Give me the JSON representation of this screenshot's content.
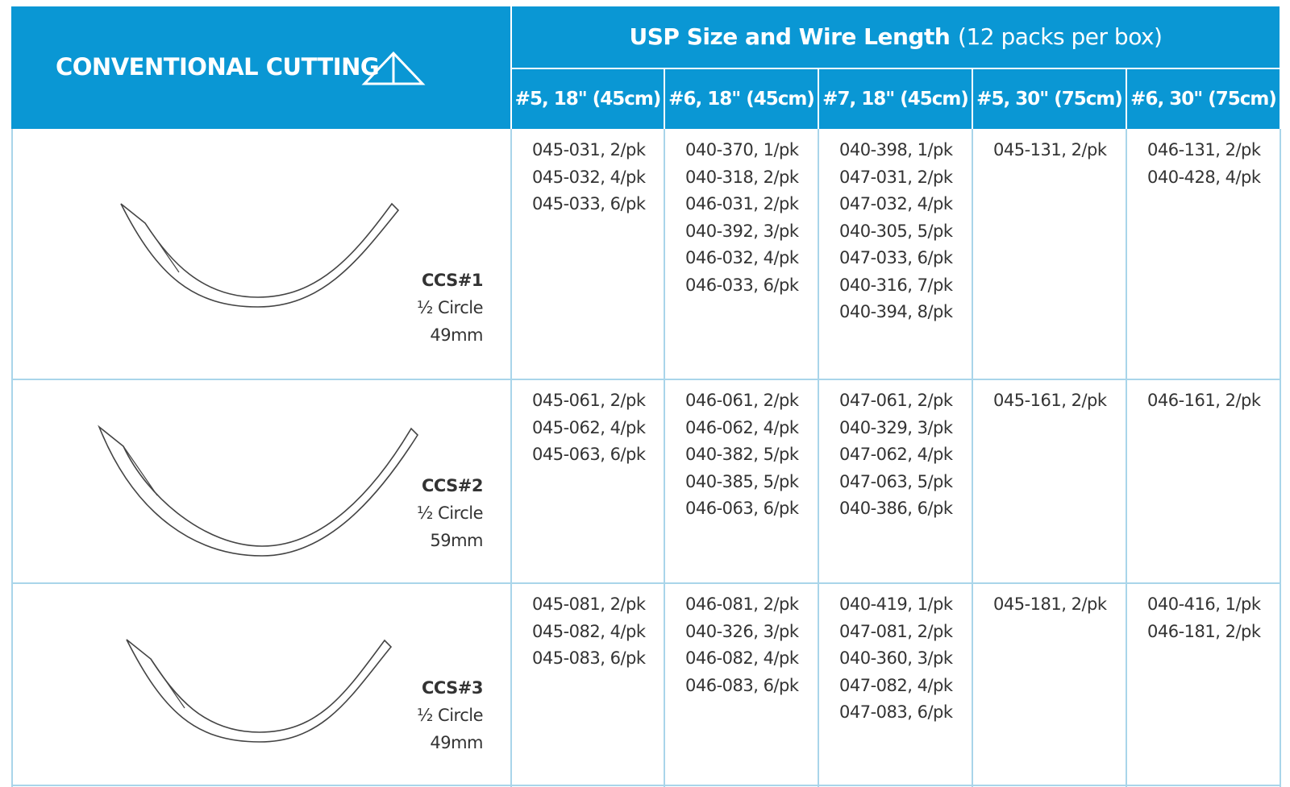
{
  "header": {
    "title": "CONVENTIONAL CUTTING",
    "usp_title": "USP Size and Wire Length",
    "usp_note": "(12 packs per box)",
    "columns": [
      "#5, 18\" (45cm)",
      "#6, 18\" (45cm)",
      "#7, 18\" (45cm)",
      "#5, 30\" (75cm)",
      "#6, 30\" (75cm)"
    ]
  },
  "table": {
    "rows": [
      {
        "name": "CCS#1",
        "shape": "½ Circle",
        "size": "49mm",
        "cells": [
          [
            "045-031, 2/pk",
            "045-032, 4/pk",
            "045-033, 6/pk"
          ],
          [
            "040-370, 1/pk",
            "040-318, 2/pk",
            "046-031, 2/pk",
            "040-392, 3/pk",
            "046-032, 4/pk",
            "046-033, 6/pk"
          ],
          [
            "040-398, 1/pk",
            "047-031, 2/pk",
            "047-032, 4/pk",
            "040-305, 5/pk",
            "047-033, 6/pk",
            "040-316, 7/pk",
            "040-394, 8/pk"
          ],
          [
            "045-131, 2/pk"
          ],
          [
            "046-131, 2/pk",
            "040-428, 4/pk"
          ]
        ]
      },
      {
        "name": "CCS#2",
        "shape": "½ Circle",
        "size": "59mm",
        "cells": [
          [
            "045-061, 2/pk",
            "045-062, 4/pk",
            "045-063, 6/pk"
          ],
          [
            "046-061, 2/pk",
            "046-062, 4/pk",
            "040-382, 5/pk",
            "040-385, 5/pk",
            "046-063, 6/pk"
          ],
          [
            "047-061, 2/pk",
            "040-329, 3/pk",
            "047-062, 4/pk",
            "047-063, 5/pk",
            "040-386, 6/pk"
          ],
          [
            "045-161, 2/pk"
          ],
          [
            "046-161, 2/pk"
          ]
        ]
      },
      {
        "name": "CCS#3",
        "shape": "½ Circle",
        "size": "49mm",
        "cells": [
          [
            "045-081, 2/pk",
            "045-082, 4/pk",
            "045-083, 6/pk"
          ],
          [
            "046-081, 2/pk",
            "040-326, 3/pk",
            "046-082, 4/pk",
            "046-083, 6/pk"
          ],
          [
            "040-419, 1/pk",
            "047-081, 2/pk",
            "040-360, 3/pk",
            "047-082, 4/pk",
            "047-083, 6/pk"
          ],
          [
            "045-181, 2/pk"
          ],
          [
            "040-416, 1/pk",
            "046-181, 2/pk"
          ]
        ]
      }
    ]
  }
}
